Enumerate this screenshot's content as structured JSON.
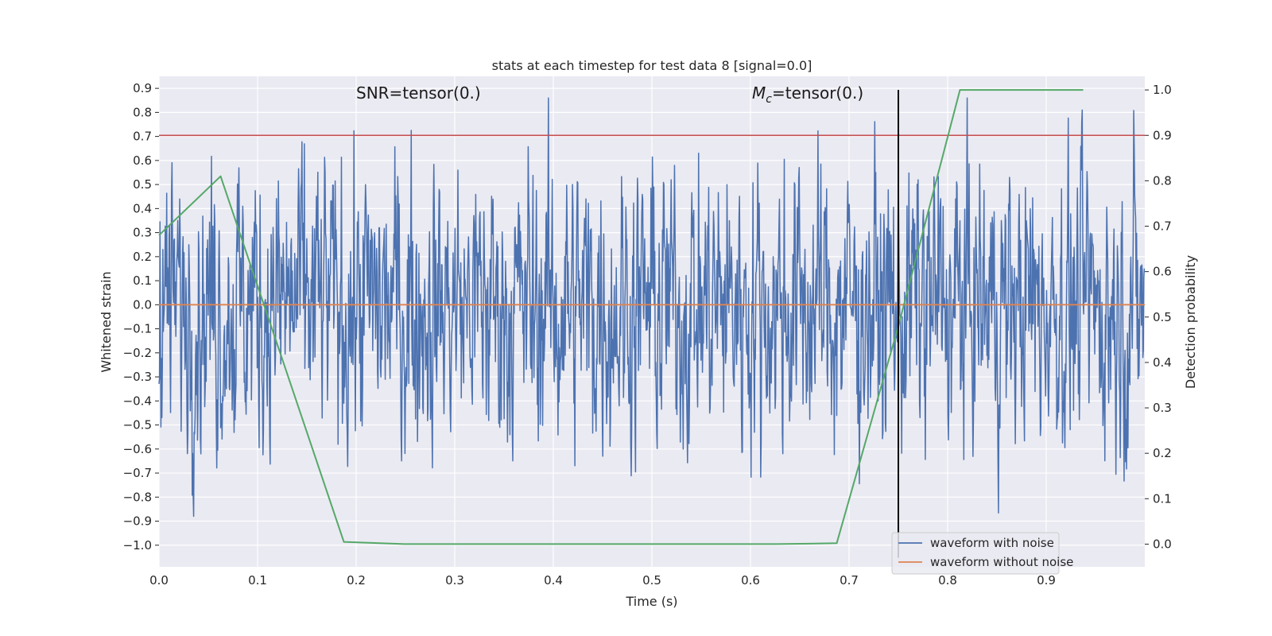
{
  "chart_data": {
    "type": "line",
    "title": "stats at each timestep for test data 8 [signal=0.0]",
    "xlabel": "Time (s)",
    "ylabel_left": "Whitened strain",
    "ylabel_right": "Detection probability",
    "xlim": [
      0.0,
      1.0
    ],
    "ylim_left": [
      -1.09,
      0.95
    ],
    "ylim_right": [
      -0.05,
      1.03
    ],
    "x_ticks": [
      0.0,
      0.1,
      0.2,
      0.3,
      0.4,
      0.5,
      0.6,
      0.7,
      0.8,
      0.9
    ],
    "x_tick_labels": [
      "0.0",
      "0.1",
      "0.2",
      "0.3",
      "0.4",
      "0.5",
      "0.6",
      "0.7",
      "0.8",
      "0.9"
    ],
    "y_left_ticks": [
      0.9,
      0.8,
      0.7,
      0.6,
      0.5,
      0.4,
      0.3,
      0.2,
      0.1,
      0.0,
      -0.1,
      -0.2,
      -0.3,
      -0.4,
      -0.5,
      -0.6,
      -0.7,
      -0.8,
      -0.9,
      -1.0
    ],
    "y_left_tick_labels": [
      "0.9",
      "0.8",
      "0.7",
      "0.6",
      "0.5",
      "0.4",
      "0.3",
      "0.2",
      "0.1",
      "0.0",
      "−0.1",
      "−0.2",
      "−0.3",
      "−0.4",
      "−0.5",
      "−0.6",
      "−0.7",
      "−0.8",
      "−0.9",
      "−1.0"
    ],
    "y_right_ticks": [
      1.0,
      0.9,
      0.8,
      0.7,
      0.6,
      0.5,
      0.4,
      0.3,
      0.2,
      0.1,
      0.0
    ],
    "y_right_tick_labels": [
      "1.0",
      "0.9",
      "0.8",
      "0.7",
      "0.6",
      "0.5",
      "0.4",
      "0.3",
      "0.2",
      "0.1",
      "0.0"
    ],
    "annotations": {
      "snr": "SNR=tensor(0.)",
      "mc_symbol": "M",
      "mc_subscript": "c",
      "mc_value": "=tensor(0.)"
    },
    "threshold_line": {
      "axis": "right",
      "y": 0.9,
      "color": "#c44e52"
    },
    "vertical_line": {
      "x": 0.75,
      "color": "#000000"
    },
    "series": [
      {
        "name": "waveform with noise",
        "axis": "left",
        "color": "#4c72b0",
        "kind": "noise",
        "n_points": 2048,
        "y_range": [
          -0.88,
          0.86
        ]
      },
      {
        "name": "waveform without noise",
        "axis": "left",
        "color": "#dd8452",
        "x": [
          0.0,
          1.0
        ],
        "y": [
          0.0,
          0.0
        ]
      },
      {
        "axis": "right",
        "color": "#55a868",
        "x": [
          0.0,
          0.0625,
          0.1875,
          0.25,
          0.3125,
          0.375,
          0.4375,
          0.5,
          0.5625,
          0.625,
          0.6875,
          0.75,
          0.8125,
          0.875,
          0.9375
        ],
        "y": [
          0.68,
          0.81,
          0.005,
          0.0,
          0.0,
          0.0,
          0.0,
          0.0,
          0.0,
          0.0,
          0.002,
          0.48,
          1.0,
          1.0,
          1.0
        ]
      }
    ],
    "legend": {
      "location": "lower right"
    },
    "grid": true
  }
}
